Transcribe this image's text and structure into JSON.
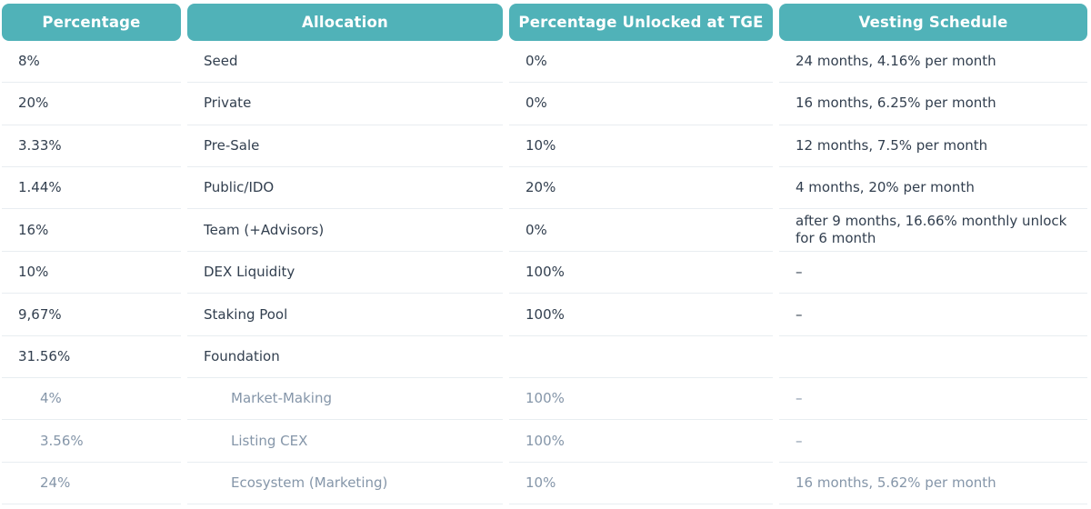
{
  "title": "Token Allocation and Vesting Schedule Table",
  "colors": {
    "accent": "#50B2B8",
    "text": "#323F4F",
    "muted": "#8596A9",
    "border": "#E8EDF1",
    "header_text": "#FFFFFF"
  },
  "header": {
    "columns": [
      "Percentage",
      "Allocation",
      "Percentage Unlocked at TGE",
      "Vesting Schedule"
    ]
  },
  "rows": [
    {
      "percentage": "8%",
      "allocation": "Seed",
      "tge": "0%",
      "vesting": "24 months, 4.16% per month",
      "sub": false
    },
    {
      "percentage": "20%",
      "allocation": "Private",
      "tge": "0%",
      "vesting": "16 months, 6.25% per month",
      "sub": false
    },
    {
      "percentage": "3.33%",
      "allocation": "Pre-Sale",
      "tge": "10%",
      "vesting": "12 months, 7.5% per month",
      "sub": false
    },
    {
      "percentage": "1.44%",
      "allocation": "Public/IDO",
      "tge": "20%",
      "vesting": "4 months, 20% per month",
      "sub": false
    },
    {
      "percentage": "16%",
      "allocation": "Team (+Advisors)",
      "tge": "0%",
      "vesting": "after 9 months, 16.66% monthly unlock for 6 month",
      "sub": false
    },
    {
      "percentage": "10%",
      "allocation": "DEX Liquidity",
      "tge": "100%",
      "vesting": "–",
      "sub": false
    },
    {
      "percentage": "9,67%",
      "allocation": "Staking Pool",
      "tge": "100%",
      "vesting": "–",
      "sub": false
    },
    {
      "percentage": "31.56%",
      "allocation": "Foundation",
      "tge": "",
      "vesting": "",
      "sub": false
    },
    {
      "percentage": "4%",
      "allocation": "Market-Making",
      "tge": "100%",
      "vesting": "–",
      "sub": true
    },
    {
      "percentage": "3.56%",
      "allocation": "Listing CEX",
      "tge": "100%",
      "vesting": "–",
      "sub": true
    },
    {
      "percentage": "24%",
      "allocation": "Ecosystem (Marketing)",
      "tge": "10%",
      "vesting": "16 months, 5.62% per month",
      "sub": true
    }
  ]
}
